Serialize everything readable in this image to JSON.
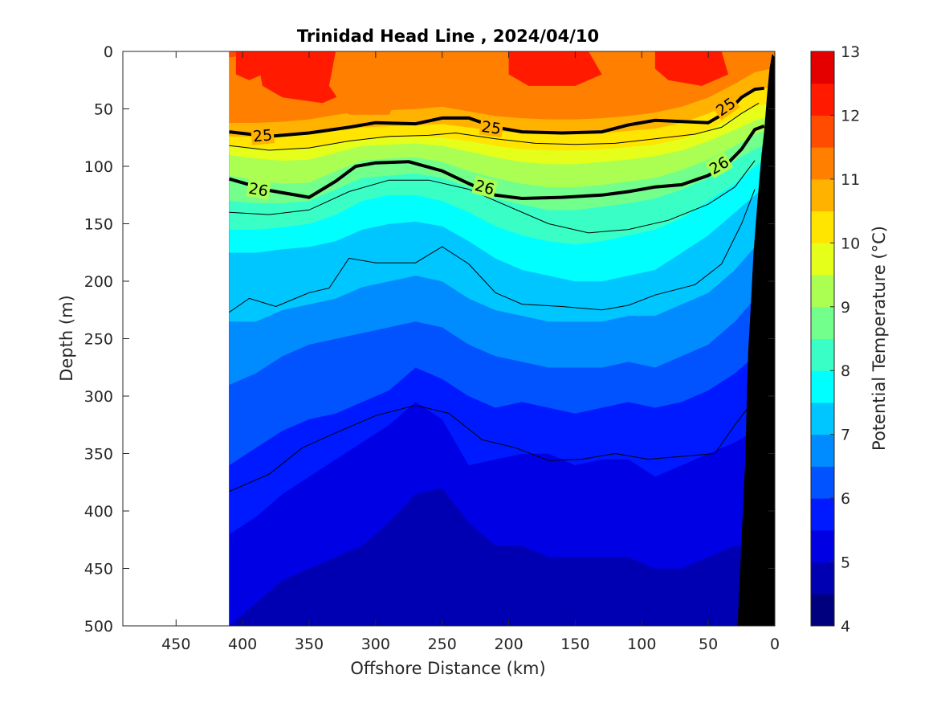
{
  "chart_data": {
    "type": "contour",
    "title": "Trinidad Head Line , 2024/04/10",
    "xlabel": "Offshore Distance (km)",
    "ylabel": "Depth (m)",
    "colorbar_label": "Potential Temperature (°C)",
    "xlim": [
      490,
      0
    ],
    "ylim": [
      0,
      500
    ],
    "x_reversed": true,
    "y_reversed": true,
    "x_ticks": [
      450,
      400,
      350,
      300,
      250,
      200,
      150,
      100,
      50,
      0
    ],
    "y_ticks": [
      0,
      50,
      100,
      150,
      200,
      250,
      300,
      350,
      400,
      450,
      500
    ],
    "x_tick_labels": [
      "450",
      "400",
      "350",
      "300",
      "250",
      "200",
      "150",
      "100",
      "50",
      "0"
    ],
    "y_tick_labels": [
      "0",
      "50",
      "100",
      "150",
      "200",
      "250",
      "300",
      "350",
      "400",
      "450",
      "500"
    ],
    "data_extent_x": [
      410,
      0
    ],
    "colorbar": {
      "min": 4,
      "max": 13,
      "step": 0.5,
      "tick_values": [
        4,
        5,
        6,
        7,
        8,
        9,
        10,
        11,
        12,
        13
      ],
      "tick_labels": [
        "4",
        "5",
        "6",
        "7",
        "8",
        "9",
        "10",
        "11",
        "12",
        "13"
      ],
      "colors": [
        "#00007f",
        "#0000b2",
        "#0000e5",
        "#001aff",
        "#0053ff",
        "#008cff",
        "#00c6ff",
        "#00ffff",
        "#39ffc6",
        "#72ff8c",
        "#abff53",
        "#e5ff1a",
        "#ffe500",
        "#ffb200",
        "#ff7f00",
        "#ff4c00",
        "#ff1a00",
        "#e50000"
      ]
    },
    "isotherm_depth_profiles": {
      "x": [
        410,
        390,
        370,
        350,
        330,
        310,
        290,
        270,
        250,
        230,
        210,
        190,
        170,
        150,
        130,
        110,
        90,
        70,
        50,
        30,
        15,
        8
      ],
      "levels": [
        {
          "temp": 4.5,
          "depth": [
            560,
            560,
            560,
            510,
            505,
            510,
            530,
            505,
            505,
            515,
            540,
            560,
            560,
            560,
            560,
            560,
            560,
            560,
            560,
            560,
            560,
            560
          ]
        },
        {
          "temp": 5.0,
          "depth": [
            500,
            480,
            460,
            450,
            440,
            430,
            410,
            385,
            380,
            410,
            430,
            430,
            440,
            440,
            440,
            440,
            450,
            450,
            440,
            430,
            430,
            430
          ]
        },
        {
          "temp": 5.5,
          "depth": [
            420,
            405,
            385,
            370,
            355,
            340,
            325,
            305,
            320,
            360,
            355,
            350,
            350,
            360,
            355,
            355,
            370,
            360,
            350,
            340,
            330,
            320
          ]
        },
        {
          "temp": 6.0,
          "depth": [
            360,
            345,
            330,
            320,
            315,
            305,
            295,
            275,
            285,
            300,
            310,
            305,
            310,
            315,
            310,
            305,
            310,
            305,
            295,
            280,
            265,
            250
          ]
        },
        {
          "temp": 6.5,
          "depth": [
            290,
            280,
            265,
            255,
            250,
            245,
            240,
            235,
            240,
            255,
            265,
            270,
            275,
            275,
            275,
            270,
            275,
            265,
            255,
            235,
            215,
            200
          ]
        },
        {
          "temp": 7.0,
          "depth": [
            235,
            235,
            225,
            220,
            215,
            205,
            200,
            195,
            200,
            215,
            225,
            230,
            235,
            235,
            235,
            230,
            230,
            220,
            210,
            190,
            170,
            155
          ]
        },
        {
          "temp": 7.5,
          "depth": [
            175,
            175,
            172,
            170,
            165,
            155,
            150,
            148,
            152,
            165,
            180,
            190,
            195,
            200,
            200,
            195,
            190,
            175,
            160,
            140,
            125,
            110
          ]
        },
        {
          "temp": 8.0,
          "depth": [
            155,
            155,
            153,
            150,
            142,
            130,
            125,
            125,
            130,
            140,
            152,
            160,
            165,
            168,
            165,
            160,
            155,
            145,
            130,
            115,
            100,
            90
          ]
        },
        {
          "temp": 8.5,
          "depth": [
            130,
            132,
            132,
            130,
            120,
            110,
            108,
            106,
            110,
            118,
            128,
            133,
            138,
            138,
            135,
            132,
            128,
            120,
            110,
            95,
            85,
            78
          ]
        },
        {
          "temp": 9.0,
          "depth": [
            108,
            112,
            115,
            114,
            104,
            95,
            93,
            92,
            96,
            104,
            110,
            115,
            118,
            118,
            116,
            113,
            110,
            103,
            94,
            82,
            72,
            66
          ]
        },
        {
          "temp": 9.5,
          "depth": [
            90,
            93,
            95,
            94,
            88,
            82,
            81,
            80,
            82,
            87,
            92,
            96,
            98,
            98,
            96,
            94,
            91,
            86,
            78,
            68,
            60,
            55
          ]
        },
        {
          "temp": 10.0,
          "depth": [
            82,
            84,
            85,
            84,
            80,
            76,
            75,
            74,
            75,
            78,
            82,
            85,
            86,
            86,
            85,
            83,
            81,
            76,
            68,
            57,
            48,
            44
          ]
        },
        {
          "temp": 10.5,
          "depth": [
            74,
            74,
            74,
            72,
            69,
            66,
            65,
            64,
            63,
            66,
            69,
            71,
            72,
            72,
            71,
            69,
            67,
            62,
            54,
            43,
            34,
            30
          ]
        },
        {
          "temp": 11.0,
          "depth": [
            62,
            62,
            61,
            59,
            55,
            52,
            51,
            50,
            48,
            52,
            56,
            58,
            59,
            59,
            58,
            56,
            53,
            48,
            40,
            28,
            18,
            14
          ]
        },
        {
          "temp": 11.5,
          "depth": [
            5,
            2,
            2,
            0,
            0,
            0,
            0,
            0,
            0,
            0,
            0,
            0,
            0,
            0,
            0,
            0,
            0,
            0,
            0,
            0,
            0,
            0
          ]
        },
        {
          "temp": 12.0,
          "depth": [
            0,
            0,
            0,
            0,
            0,
            0,
            0,
            0,
            0,
            0,
            0,
            0,
            0,
            0,
            0,
            0,
            0,
            0,
            0,
            0,
            0,
            0
          ]
        }
      ]
    },
    "warm_patches_12C": [
      {
        "x": [
          405,
          390,
          385,
          395,
          405
        ],
        "depth": [
          0,
          0,
          20,
          25,
          20
        ]
      },
      {
        "x": [
          390,
          330,
          310,
          340,
          370,
          385
        ],
        "depth": [
          0,
          0,
          30,
          45,
          40,
          30
        ]
      },
      {
        "x": [
          200,
          140,
          130,
          150,
          185,
          200
        ],
        "depth": [
          0,
          0,
          20,
          30,
          30,
          20
        ]
      },
      {
        "x": [
          90,
          40,
          35,
          55,
          80,
          90
        ],
        "depth": [
          0,
          0,
          20,
          30,
          25,
          15
        ]
      }
    ],
    "cool_patch_11C": {
      "x": [
        330,
        285,
        280,
        290,
        320,
        335
      ],
      "depth": [
        0,
        0,
        35,
        55,
        55,
        30
      ]
    },
    "sigma_contours": [
      {
        "label": "25",
        "style": "bold",
        "x": [
          410,
          380,
          350,
          320,
          300,
          270,
          250,
          230,
          210,
          190,
          160,
          130,
          110,
          90,
          70,
          50,
          35,
          25,
          15,
          8
        ],
        "depth": [
          70,
          74,
          71,
          66,
          62,
          63,
          58,
          58,
          66,
          70,
          71,
          70,
          64,
          60,
          61,
          62,
          52,
          40,
          33,
          32
        ]
      },
      {
        "label": "26",
        "style": "bold",
        "x": [
          410,
          380,
          350,
          330,
          315,
          300,
          275,
          250,
          230,
          210,
          190,
          160,
          130,
          110,
          90,
          70,
          50,
          35,
          25,
          15,
          8
        ],
        "depth": [
          111,
          121,
          127,
          113,
          100,
          97,
          96,
          104,
          115,
          125,
          128,
          127,
          125,
          122,
          118,
          116,
          108,
          97,
          85,
          68,
          65
        ]
      },
      {
        "label": "",
        "style": "thin",
        "x": [
          410,
          380,
          350,
          320,
          290,
          260,
          240,
          210,
          180,
          150,
          120,
          90,
          60,
          40,
          25,
          12
        ],
        "depth": [
          82,
          86,
          84,
          78,
          74,
          73,
          71,
          76,
          80,
          81,
          80,
          76,
          72,
          66,
          54,
          45
        ]
      },
      {
        "label": "",
        "style": "thin",
        "x": [
          410,
          380,
          350,
          320,
          290,
          260,
          230,
          200,
          170,
          140,
          110,
          80,
          50,
          30,
          15
        ],
        "depth": [
          140,
          142,
          138,
          122,
          112,
          112,
          120,
          135,
          150,
          158,
          155,
          147,
          133,
          118,
          95
        ]
      },
      {
        "label": "",
        "style": "thin",
        "x": [
          410,
          395,
          375,
          350,
          335,
          320,
          300,
          270,
          250,
          230,
          210,
          190,
          160,
          130,
          110,
          90,
          60,
          40,
          25,
          15
        ],
        "depth": [
          227,
          215,
          222,
          210,
          206,
          180,
          184,
          184,
          170,
          185,
          210,
          220,
          222,
          225,
          221,
          212,
          203,
          185,
          150,
          120
        ]
      },
      {
        "label": "",
        "style": "thin",
        "x": [
          410,
          380,
          355,
          330,
          300,
          270,
          245,
          220,
          195,
          170,
          145,
          120,
          95,
          65,
          45,
          30,
          20
        ],
        "depth": [
          383,
          368,
          345,
          332,
          317,
          308,
          315,
          338,
          345,
          356,
          355,
          350,
          355,
          352,
          350,
          325,
          310
        ]
      }
    ],
    "contour_labels": [
      {
        "text": "25",
        "x": 385,
        "depth": 73,
        "angle": -5
      },
      {
        "text": "25",
        "x": 213,
        "depth": 66,
        "angle": 8
      },
      {
        "text": "25",
        "x": 37,
        "depth": 48,
        "angle": -35
      },
      {
        "text": "26",
        "x": 388,
        "depth": 120,
        "angle": 10
      },
      {
        "text": "26",
        "x": 218,
        "depth": 118,
        "angle": 15
      },
      {
        "text": "26",
        "x": 42,
        "depth": 99,
        "angle": -30
      }
    ],
    "bathymetry": {
      "x": [
        0,
        0,
        2,
        4,
        6,
        8,
        10,
        13,
        16,
        18,
        20,
        21,
        22,
        24,
        26,
        28
      ],
      "depth": [
        500,
        5,
        2,
        15,
        40,
        70,
        90,
        130,
        175,
        220,
        260,
        300,
        350,
        400,
        450,
        500
      ]
    }
  }
}
